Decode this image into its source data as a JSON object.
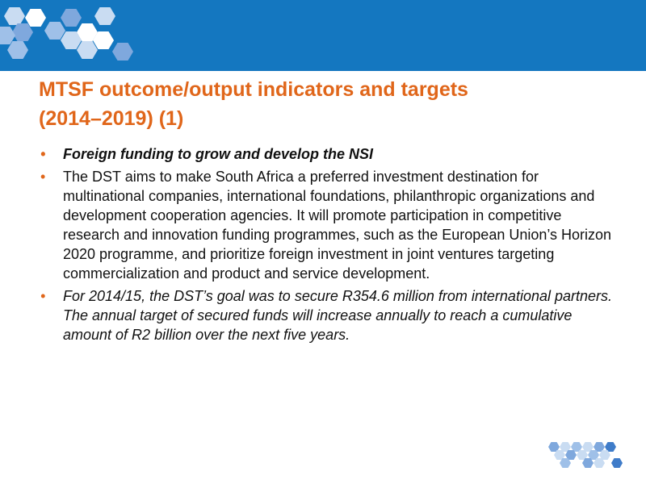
{
  "title": {
    "line1": "MTSF outcome/output indicators and targets",
    "line2": "(2014–2019) (1)"
  },
  "bullets": [
    {
      "text": "Foreign funding to grow and develop the NSI"
    },
    {
      "text": "The DST aims to make South Africa a preferred investment destination for multinational companies, international foundations, philanthropic organizations and development cooperation agencies. It will promote participation in competitive research and innovation funding programmes, such as the European Union’s Horizon 2020 programme, and prioritize foreign investment in joint ventures targeting commercialization and product and service development."
    },
    {
      "text": "For 2014/15, the DST’s goal was to secure R354.6 million from international partners. The annual target of secured funds will increase annually to reach a cumulative amount of R2 billion over the next five years."
    }
  ],
  "bullet_symbol": "•",
  "colors": {
    "header_band": "#1477c0",
    "title": "#e0661a",
    "bullet": "#e0661a",
    "body_text": "#111111",
    "hex_light": "#c9dcf2",
    "hex_mid": "#7fa8dd",
    "hex_dark": "#3f7cc9"
  },
  "decorations": {
    "top_left": "hexagon-pattern-icon",
    "bottom_right": "hexagon-pattern-icon"
  }
}
